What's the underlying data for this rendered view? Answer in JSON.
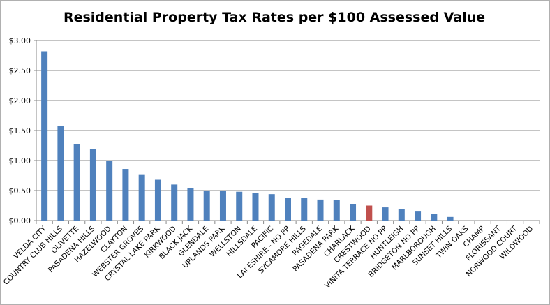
{
  "chart_data": {
    "type": "bar",
    "title": "Residential Property Tax Rates per $100 Assessed Value",
    "xlabel": "",
    "ylabel": "",
    "ylim": [
      0,
      3
    ],
    "yticks": [
      "$0.00",
      "$0.50",
      "$1.00",
      "$1.50",
      "$2.00",
      "$2.50",
      "$3.00"
    ],
    "grid": true,
    "legend": "none",
    "categories": [
      "VELDA CITY",
      "COUNTRY CLUB HILLS",
      "OLIVETTE",
      "PASADENA HILLS",
      "HAZELWOOD",
      "CLAYTON",
      "WEBSTER GROVES",
      "CRYSTAL LAKE PARK",
      "KIRKWOOD",
      "BLACK JACK",
      "GLENDALE",
      "UPLANDS PARK",
      "WELLSTON",
      "HILLSDALE",
      "PACIFIC",
      "LAKESHIRE - NO PP",
      "SYCAMORE HILLS",
      "PAGEDALE",
      "PASADENA PARK",
      "CHARLACK",
      "CRESTWOOD",
      "VINITA TERRACE NO PP",
      "HUNTLEIGH",
      "BRIDGETON NO PP",
      "MARLBOROUGH",
      "SUNSET HILLS",
      "TWIN OAKS",
      "CHAMP",
      "FLORISSANT",
      "NORWOOD COURT",
      "WILDWOOD"
    ],
    "values": [
      2.82,
      1.57,
      1.27,
      1.19,
      1.0,
      0.86,
      0.76,
      0.68,
      0.6,
      0.54,
      0.5,
      0.5,
      0.48,
      0.46,
      0.44,
      0.38,
      0.38,
      0.35,
      0.34,
      0.27,
      0.25,
      0.22,
      0.19,
      0.15,
      0.11,
      0.06,
      0,
      0,
      0,
      0,
      0
    ],
    "colors": {
      "default": "#4f81bd",
      "highlight": "#c0504d"
    },
    "highlight_category": "CRESTWOOD"
  }
}
